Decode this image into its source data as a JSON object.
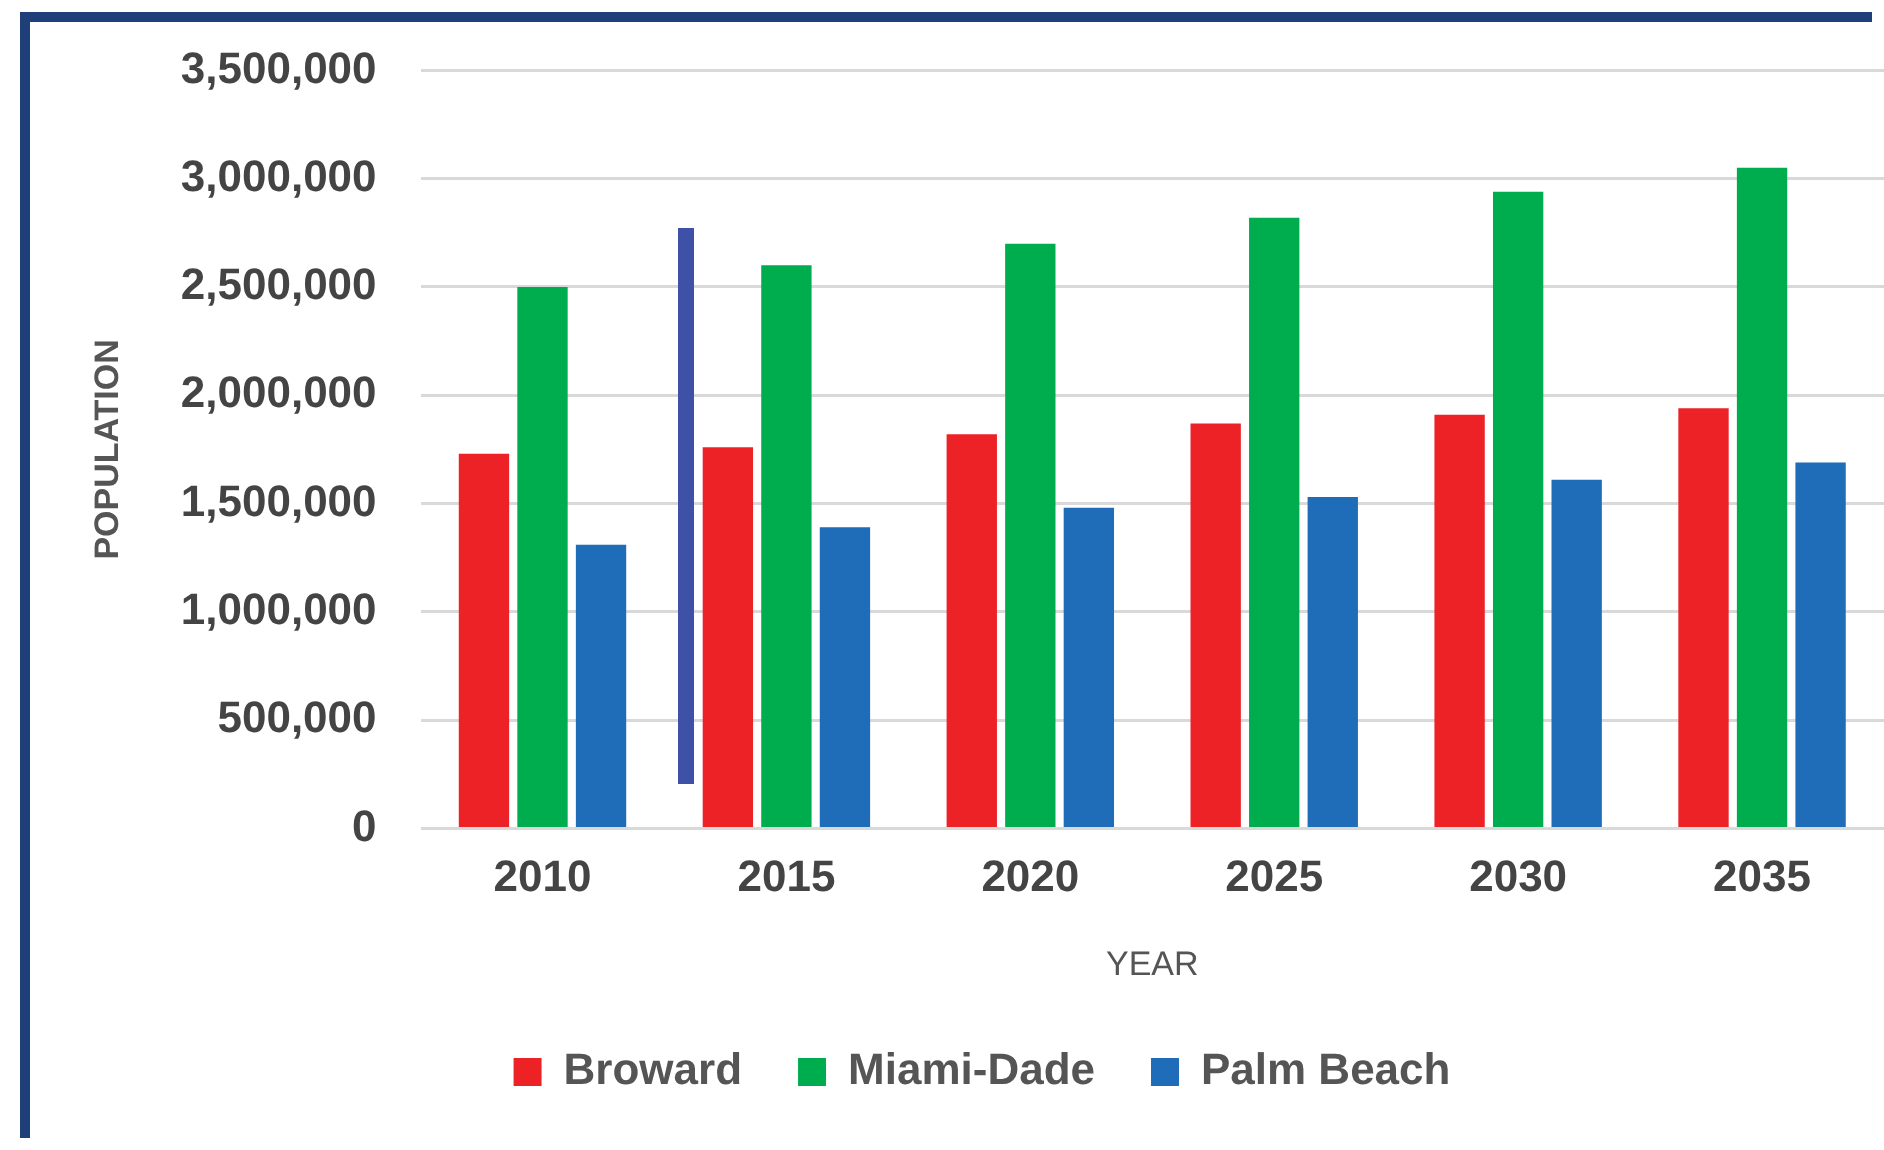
{
  "chart_data": {
    "type": "bar",
    "xlabel": "YEAR",
    "ylabel": "POPULATION",
    "categories": [
      "2010",
      "2015",
      "2020",
      "2025",
      "2030",
      "2035"
    ],
    "series": [
      {
        "name": "Broward",
        "color": "#ec2227",
        "values": [
          1730000,
          1760000,
          1820000,
          1870000,
          1910000,
          1940000
        ]
      },
      {
        "name": "Miami-Dade",
        "color": "#00ad4e",
        "values": [
          2500000,
          2600000,
          2700000,
          2820000,
          2940000,
          3050000
        ]
      },
      {
        "name": "Palm Beach",
        "color": "#1f6db8",
        "values": [
          1310000,
          1390000,
          1480000,
          1530000,
          1610000,
          1690000
        ]
      }
    ],
    "ylim": [
      0,
      3500000
    ],
    "yticks": [
      {
        "value": 0,
        "label": "0"
      },
      {
        "value": 500000,
        "label": "500,000"
      },
      {
        "value": 1000000,
        "label": "1,000,000"
      },
      {
        "value": 1500000,
        "label": "1,500,000"
      },
      {
        "value": 2000000,
        "label": "2,000,000"
      },
      {
        "value": 2500000,
        "label": "2,500,000"
      },
      {
        "value": 3000000,
        "label": "3,000,000"
      },
      {
        "value": 3500000,
        "label": "3,500,000"
      }
    ],
    "grid": "y",
    "legend": "bottom"
  }
}
